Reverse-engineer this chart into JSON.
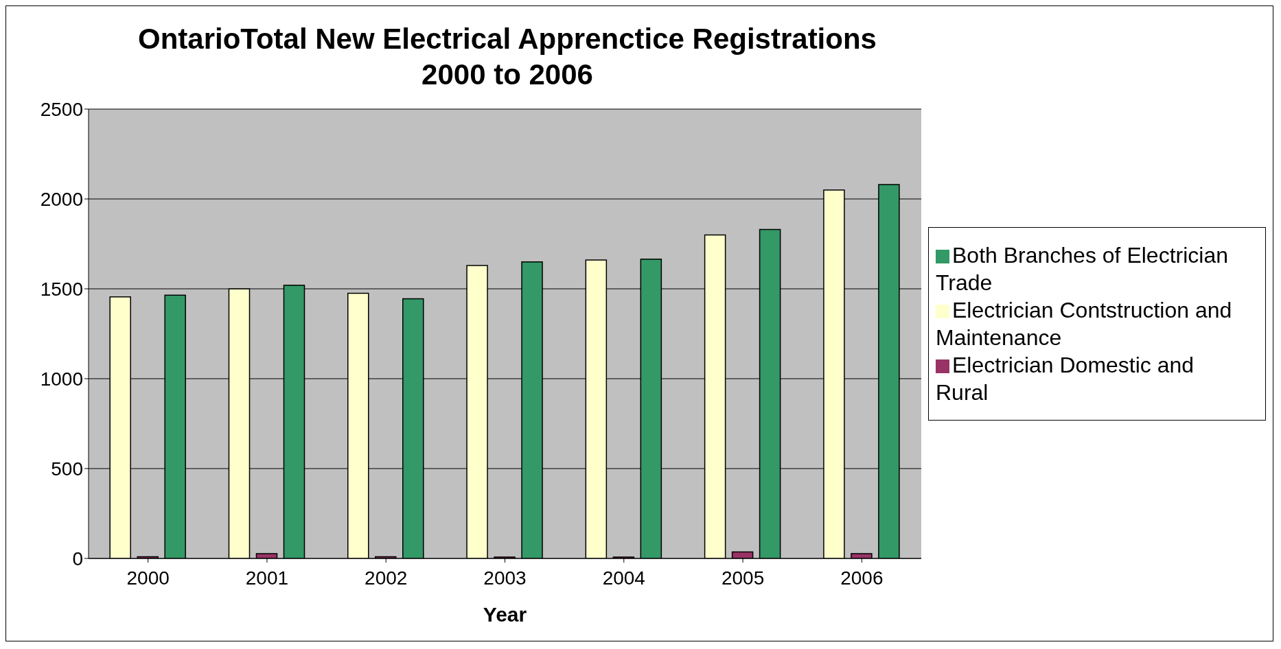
{
  "chart_data": {
    "type": "bar",
    "title": "OntarioTotal New Electrical Apprenctice Registrations\n2000 to 2006",
    "xlabel": "Year",
    "categories": [
      "2000",
      "2001",
      "2002",
      "2003",
      "2004",
      "2005",
      "2006"
    ],
    "series": [
      {
        "name": "Electrician Contstruction and Maintenance",
        "color": "#ffffcc",
        "values": [
          1455,
          1500,
          1475,
          1630,
          1660,
          1800,
          2050
        ]
      },
      {
        "name": "Electrician Domestic and Rural",
        "color": "#993366",
        "values": [
          10,
          27,
          10,
          8,
          8,
          36,
          27
        ]
      },
      {
        "name": "Both Branches of Electrician Trade",
        "color": "#339966",
        "values": [
          1465,
          1520,
          1445,
          1650,
          1665,
          1830,
          2080
        ]
      }
    ],
    "ylim": [
      0,
      2500
    ],
    "yticks": [
      0,
      500,
      1000,
      1500,
      2000,
      2500
    ],
    "grid": "y",
    "legend": "right"
  }
}
